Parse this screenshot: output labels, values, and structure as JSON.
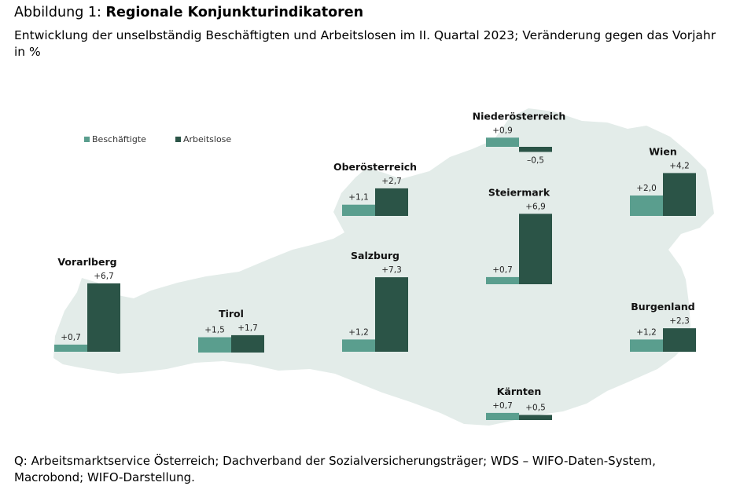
{
  "figure": {
    "label": "Abbildung 1:",
    "title": "Regionale Konjunkturindikatoren",
    "subtitle": "Entwicklung der unselbständig Beschäftigten und Arbeitslosen im II. Quartal 2023; Veränderung gegen das Vorjahr in %",
    "source": "Q: Arbeitsmarktservice Österreich; Dachverband der Sozialversicherungsträger; WDS – WIFO-Daten-System, Macrobond; WIFO-Darstellung."
  },
  "colors": {
    "beschaeftigte": "#5a9e8e",
    "arbeitslose": "#2b5447",
    "map": "#e3ece9"
  },
  "chart_data": {
    "type": "bar",
    "unit": "%",
    "series": [
      {
        "name": "Beschäftigte",
        "color": "#5a9e8e"
      },
      {
        "name": "Arbeitslose",
        "color": "#2b5447"
      }
    ],
    "legend_position": "top-left",
    "regions": [
      {
        "name": "Vorarlberg",
        "values": [
          0.7,
          6.7
        ],
        "labels": [
          "+0,7",
          "+6,7"
        ]
      },
      {
        "name": "Tirol",
        "values": [
          1.5,
          1.7
        ],
        "labels": [
          "+1,5",
          "+1,7"
        ]
      },
      {
        "name": "Oberösterreich",
        "values": [
          1.1,
          2.7
        ],
        "labels": [
          "+1,1",
          "+2,7"
        ]
      },
      {
        "name": "Salzburg",
        "values": [
          1.2,
          7.3
        ],
        "labels": [
          "+1,2",
          "+7,3"
        ]
      },
      {
        "name": "Niederösterreich",
        "values": [
          0.9,
          -0.5
        ],
        "labels": [
          "+0,9",
          "–0,5"
        ]
      },
      {
        "name": "Steiermark",
        "values": [
          0.7,
          6.9
        ],
        "labels": [
          "+0,7",
          "+6,9"
        ]
      },
      {
        "name": "Kärnten",
        "values": [
          0.7,
          0.5
        ],
        "labels": [
          "+0,7",
          "+0,5"
        ]
      },
      {
        "name": "Wien",
        "values": [
          2.0,
          4.2
        ],
        "labels": [
          "+2,0",
          "+4,2"
        ]
      },
      {
        "name": "Burgenland",
        "values": [
          1.2,
          2.3
        ],
        "labels": [
          "+1,2",
          "+2,3"
        ]
      }
    ]
  }
}
